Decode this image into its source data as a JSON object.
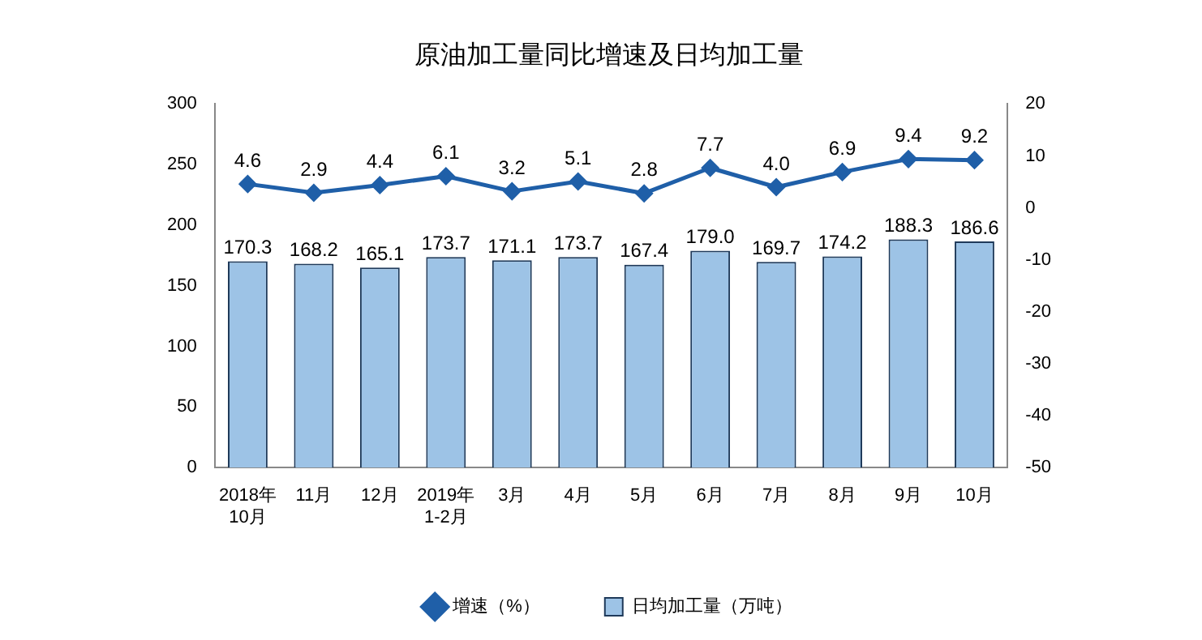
{
  "chart_data": {
    "type": "bar",
    "title": "原油加工量同比增速及日均加工量",
    "categories": [
      "2018年\n10月",
      "11月",
      "12月",
      "2019年\n1-2月",
      "3月",
      "4月",
      "5月",
      "6月",
      "7月",
      "8月",
      "9月",
      "10月"
    ],
    "series": [
      {
        "name": "日均加工量（万吨）",
        "color": "#9dc3e6",
        "values": [
          170.3,
          168.2,
          165.1,
          173.7,
          171.1,
          173.7,
          167.4,
          179.0,
          169.7,
          174.2,
          188.3,
          186.6
        ],
        "value_labels": [
          "170.3",
          "168.2",
          "165.1",
          "173.7",
          "171.1",
          "173.7",
          "167.4",
          "179.0",
          "169.7",
          "174.2",
          "188.3",
          "186.6"
        ]
      },
      {
        "name": "增速（%）",
        "type": "line",
        "axis": "y2",
        "color": "#1f5fa8",
        "values": [
          4.6,
          2.9,
          4.4,
          6.1,
          3.2,
          5.1,
          2.8,
          7.7,
          4.0,
          6.9,
          9.4,
          9.2
        ],
        "value_labels": [
          "4.6",
          "2.9",
          "4.4",
          "6.1",
          "3.2",
          "5.1",
          "2.8",
          "7.7",
          "4.0",
          "6.9",
          "9.4",
          "9.2"
        ]
      }
    ],
    "ylim": [
      0,
      300
    ],
    "yticks": [
      0,
      50,
      100,
      150,
      200,
      250,
      300
    ],
    "y2lim": [
      -50,
      20
    ],
    "y2ticks": [
      -50,
      -40,
      -30,
      -20,
      -10,
      0,
      10,
      20
    ],
    "legend": "bottom",
    "marker": "diamond",
    "grid": false
  }
}
